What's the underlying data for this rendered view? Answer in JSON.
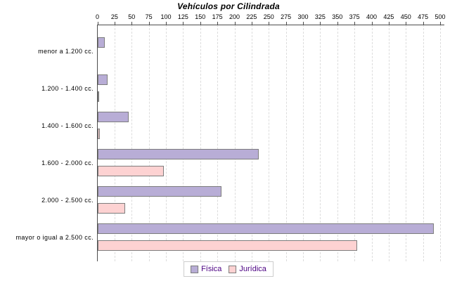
{
  "title": "Vehículos por Cilindrada",
  "chart_data": {
    "type": "bar",
    "orientation": "horizontal",
    "title": "Vehículos por Cilindrada",
    "categories": [
      "menor a 1.200 cc.",
      "1.200 - 1.400 cc.",
      "1.400 - 1.600 cc.",
      "1.600 - 2.000 cc.",
      "2.000 - 2.500 cc.",
      "mayor o igual a 2.500 cc."
    ],
    "series": [
      {
        "name": "Física",
        "color": "#b8add6",
        "border_color": "#7d7d7d",
        "values": [
          10,
          14,
          45,
          235,
          180,
          490
        ]
      },
      {
        "name": "Jurídica",
        "color": "#fdd2d2",
        "border_color": "#7d7d7d",
        "values": [
          0,
          1,
          3,
          96,
          40,
          378
        ]
      }
    ],
    "xlim": [
      0,
      500
    ],
    "x_tick_step": 25,
    "xlabel": "",
    "ylabel": "",
    "grid": "dashed-vertical",
    "axis_position": "top",
    "legend_position": "bottom-center",
    "background_color": "#ffffff",
    "axis_color": "#4d4d4d",
    "gridline_color": "#dcdcdc",
    "legend_text_color": "#4b0082"
  }
}
